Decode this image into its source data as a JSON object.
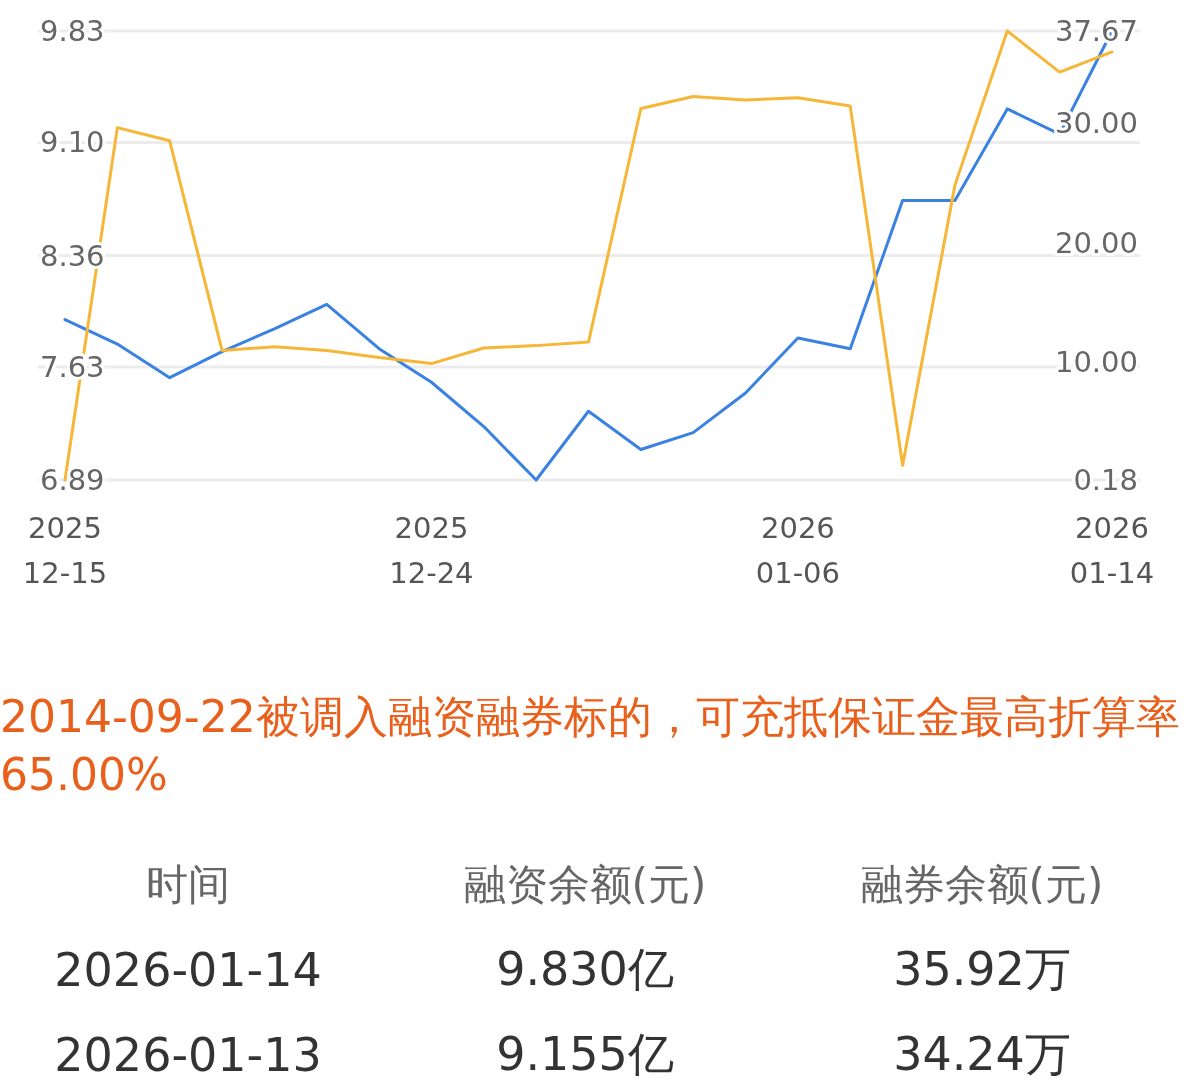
{
  "chart_data": {
    "type": "line",
    "categories": [
      "2025\n12-15",
      null,
      null,
      null,
      null,
      null,
      null,
      "2025\n12-24",
      null,
      null,
      null,
      null,
      null,
      null,
      "2026\n01-06",
      null,
      null,
      null,
      null,
      null,
      "2026\n01-14"
    ],
    "series": [
      {
        "color": "#3b82e0",
        "values": [
          7.94,
          7.78,
          7.56,
          7.73,
          7.88,
          8.04,
          7.75,
          7.53,
          7.24,
          6.89,
          7.34,
          7.09,
          7.2,
          7.46,
          7.82,
          7.75,
          8.72,
          8.72,
          9.32,
          9.155,
          9.83
        ]
      },
      {
        "color": "#f6b637",
        "axis": "y2",
        "values": [
          0.18,
          29.6,
          28.5,
          11.0,
          11.3,
          11.0,
          10.4,
          9.9,
          11.2,
          11.4,
          11.7,
          31.2,
          32.2,
          31.9,
          32.1,
          31.4,
          1.4,
          24.8,
          37.67,
          34.24,
          35.92
        ]
      }
    ],
    "ylim": [
      6.89,
      9.83
    ],
    "yticks": [
      6.89,
      7.63,
      8.36,
      {
        "value": 9.1,
        "label": "9.10"
      },
      9.83
    ],
    "y2lim": [
      0.18,
      37.67
    ],
    "y2ticks": [
      0.18,
      {
        "value": 10,
        "label": "10.00"
      },
      {
        "value": 20,
        "label": "20.00"
      },
      {
        "value": 30,
        "label": "30.00"
      },
      37.67
    ],
    "grid": "y",
    "annotations": [
      "2014-09-22被调入融资融券标的，可充抵保证金最高折算率65.00%",
      "时间",
      "融资余额(元)",
      "融券余额(元)",
      "2026-01-14",
      "9.830亿",
      "35.92万",
      "2026-01-13",
      "9.155亿",
      "34.24万"
    ]
  }
}
